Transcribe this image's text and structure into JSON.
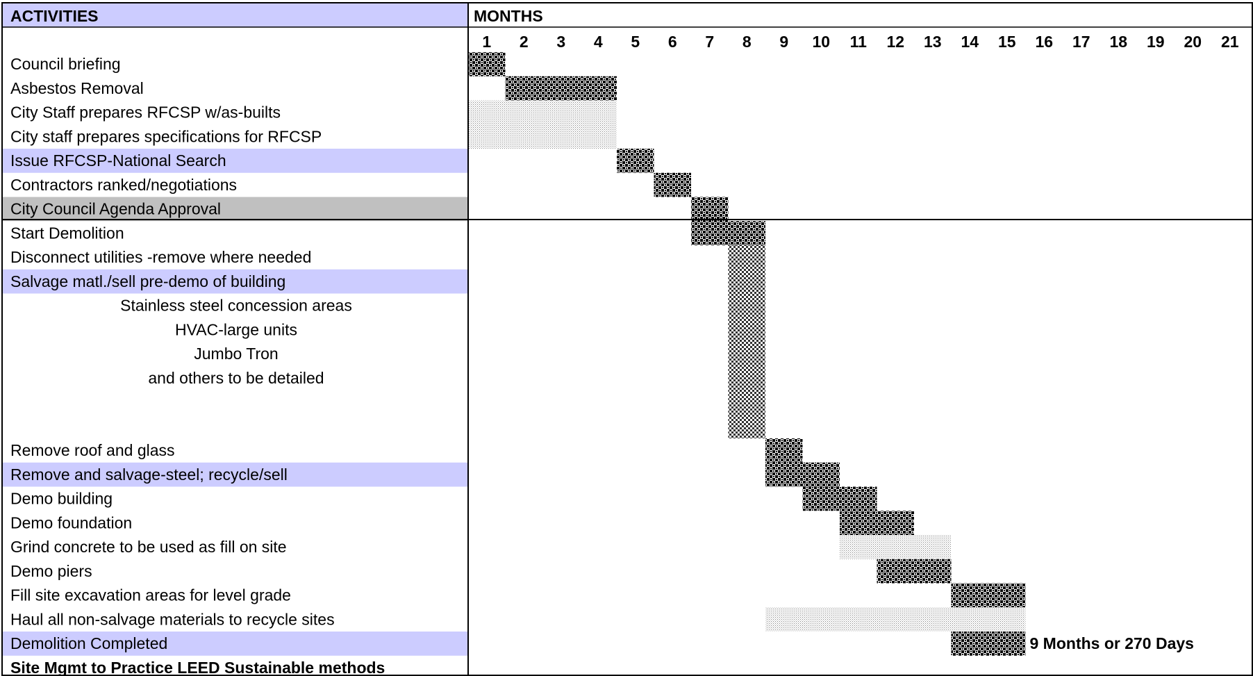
{
  "header": {
    "activities_label": "ACTIVITIES",
    "months_label": "MONTHS"
  },
  "colors": {
    "highlight_row": "#ccccff",
    "gray_row": "#c0c0c0",
    "dark_bar": "#000000",
    "light_bar": "#999999",
    "border": "#000000"
  },
  "chart_data": {
    "type": "gantt",
    "months": [
      "1",
      "2",
      "3",
      "4",
      "5",
      "6",
      "7",
      "8",
      "9",
      "10",
      "11",
      "12",
      "13",
      "14",
      "15",
      "16",
      "17",
      "18",
      "19",
      "20",
      "21"
    ],
    "rows": [
      {
        "label": "Council briefing",
        "align": "left",
        "highlight": "none"
      },
      {
        "label": "Asbestos Removal",
        "align": "left",
        "highlight": "none"
      },
      {
        "label": "City Staff prepares RFCSP w/as-builts",
        "align": "left",
        "highlight": "none"
      },
      {
        "label": "City staff prepares specifications for RFCSP",
        "align": "left",
        "highlight": "none"
      },
      {
        "label": "Issue RFCSP-National Search",
        "align": "left",
        "highlight": "blue"
      },
      {
        "label": "Contractors ranked/negotiations",
        "align": "left",
        "highlight": "none"
      },
      {
        "label": "City Council Agenda Approval",
        "align": "left",
        "highlight": "gray"
      },
      {
        "label": "Start Demolition",
        "align": "left",
        "highlight": "none"
      },
      {
        "label": "Disconnect utilities -remove where needed",
        "align": "left",
        "highlight": "none"
      },
      {
        "label": "Salvage matl./sell pre-demo of building",
        "align": "left",
        "highlight": "blue"
      },
      {
        "label": "Stainless steel concession areas",
        "align": "center",
        "highlight": "none"
      },
      {
        "label": "HVAC-large units",
        "align": "center",
        "highlight": "none"
      },
      {
        "label": "Jumbo Tron",
        "align": "center",
        "highlight": "none"
      },
      {
        "label": "and others to be detailed",
        "align": "center",
        "highlight": "none"
      },
      {
        "label": "",
        "align": "left",
        "highlight": "none"
      },
      {
        "label": "",
        "align": "left",
        "highlight": "none"
      },
      {
        "label": "Remove roof and glass",
        "align": "left",
        "highlight": "none"
      },
      {
        "label": "Remove and salvage-steel; recycle/sell",
        "align": "left",
        "highlight": "blue"
      },
      {
        "label": "Demo building",
        "align": "left",
        "highlight": "none"
      },
      {
        "label": "Demo foundation",
        "align": "left",
        "highlight": "none"
      },
      {
        "label": "Grind concrete to be used as fill on site",
        "align": "left",
        "highlight": "none"
      },
      {
        "label": "Demo piers",
        "align": "left",
        "highlight": "none"
      },
      {
        "label": "Fill site excavation areas for level grade",
        "align": "left",
        "highlight": "none"
      },
      {
        "label": "Haul all non-salvage materials to recycle sites",
        "align": "left",
        "highlight": "none"
      },
      {
        "label": "Demolition Completed",
        "align": "left",
        "highlight": "blue"
      },
      {
        "label": "Site Mgmt to Practice LEED Sustainable methods",
        "align": "left",
        "highlight": "none",
        "bold": true
      }
    ],
    "bars": [
      {
        "task": "Council briefing",
        "start_month": 1,
        "end_month": 1,
        "first_row": 0,
        "last_row": 0,
        "style": "dark"
      },
      {
        "task": "Asbestos Removal",
        "start_month": 2,
        "end_month": 4,
        "first_row": 1,
        "last_row": 1,
        "style": "dark"
      },
      {
        "task": "City Staff prepares RFCSP w/as-builts / specifications",
        "start_month": 1,
        "end_month": 4,
        "first_row": 2,
        "last_row": 3,
        "style": "light"
      },
      {
        "task": "Issue RFCSP-National Search",
        "start_month": 5,
        "end_month": 5,
        "first_row": 4,
        "last_row": 4,
        "style": "dark"
      },
      {
        "task": "Contractors ranked/negotiations",
        "start_month": 6,
        "end_month": 6,
        "first_row": 5,
        "last_row": 5,
        "style": "dark"
      },
      {
        "task": "City Council Agenda Approval",
        "start_month": 7,
        "end_month": 7,
        "first_row": 6,
        "last_row": 6,
        "style": "dark"
      },
      {
        "task": "Start Demolition",
        "start_month": 7,
        "end_month": 8,
        "first_row": 7,
        "last_row": 7,
        "style": "dark"
      },
      {
        "task": "Disconnect utilities / Salvage",
        "start_month": 8,
        "end_month": 8,
        "first_row": 8,
        "last_row": 15,
        "style": "medium"
      },
      {
        "task": "Remove roof and glass",
        "start_month": 9,
        "end_month": 9,
        "first_row": 16,
        "last_row": 16,
        "style": "dark"
      },
      {
        "task": "Remove and salvage-steel; recycle/sell",
        "start_month": 9,
        "end_month": 10,
        "first_row": 17,
        "last_row": 17,
        "style": "dark"
      },
      {
        "task": "Demo building",
        "start_month": 10,
        "end_month": 11,
        "first_row": 18,
        "last_row": 18,
        "style": "dark"
      },
      {
        "task": "Demo foundation",
        "start_month": 11,
        "end_month": 12,
        "first_row": 19,
        "last_row": 19,
        "style": "dark"
      },
      {
        "task": "Grind concrete to be used as fill on site",
        "start_month": 11,
        "end_month": 13,
        "first_row": 20,
        "last_row": 20,
        "style": "light"
      },
      {
        "task": "Demo piers",
        "start_month": 12,
        "end_month": 13,
        "first_row": 21,
        "last_row": 21,
        "style": "dark"
      },
      {
        "task": "Fill site excavation areas for level grade",
        "start_month": 14,
        "end_month": 15,
        "first_row": 22,
        "last_row": 22,
        "style": "dark"
      },
      {
        "task": "Haul all non-salvage materials to recycle sites",
        "start_month": 9,
        "end_month": 15,
        "first_row": 23,
        "last_row": 23,
        "style": "light"
      },
      {
        "task": "Demolition Completed",
        "start_month": 14,
        "end_month": 15,
        "first_row": 24,
        "last_row": 24,
        "style": "dark"
      }
    ],
    "annotations": [
      {
        "row": 24,
        "after_month": 15,
        "text": "9 Months or 270 Days"
      }
    ]
  }
}
